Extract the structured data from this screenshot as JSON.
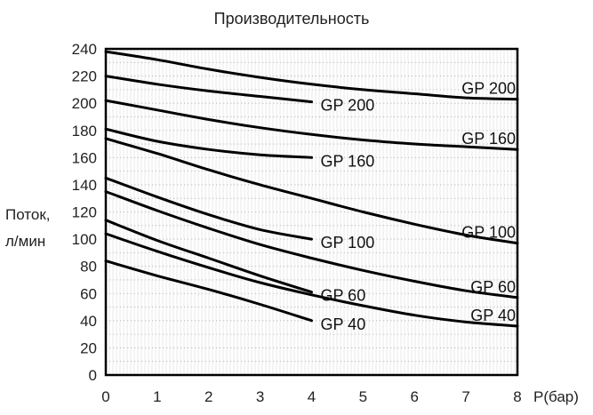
{
  "chart_data": {
    "type": "line",
    "title": "Производительность",
    "xlabel": "P(бар)",
    "ylabel_line1": "Поток,",
    "ylabel_line2": "л/мин",
    "xlim": [
      0,
      8
    ],
    "ylim": [
      0,
      240
    ],
    "xticks": [
      "0",
      "1",
      "2",
      "3",
      "4",
      "5",
      "6",
      "7",
      "8"
    ],
    "yticks": [
      "0",
      "20",
      "40",
      "60",
      "80",
      "100",
      "120",
      "140",
      "160",
      "180",
      "200",
      "220",
      "240"
    ],
    "grid": true,
    "series": [
      {
        "name": "GP 200",
        "x": [
          0,
          1,
          2,
          3,
          4,
          5,
          6,
          7,
          8
        ],
        "y": [
          238,
          232,
          225,
          219,
          214,
          210,
          207,
          204,
          203
        ]
      },
      {
        "name": "GP 200",
        "x": [
          0,
          1,
          2,
          3,
          4
        ],
        "y": [
          220,
          214,
          209,
          205,
          201
        ]
      },
      {
        "name": "GP 160",
        "x": [
          0,
          1,
          2,
          3,
          4,
          5,
          6,
          7,
          8
        ],
        "y": [
          202,
          195,
          188,
          182,
          177,
          173,
          170,
          168,
          166
        ]
      },
      {
        "name": "GP 160",
        "x": [
          0,
          1,
          2,
          3,
          4
        ],
        "y": [
          181,
          172,
          166,
          162,
          160
        ]
      },
      {
        "name": "GP 100",
        "x": [
          0,
          1,
          2,
          3,
          4,
          5,
          6,
          7,
          8
        ],
        "y": [
          174,
          163,
          151,
          140,
          130,
          120,
          111,
          103,
          97
        ]
      },
      {
        "name": "GP 100",
        "x": [
          0,
          1,
          2,
          3,
          4
        ],
        "y": [
          145,
          131,
          118,
          107,
          100
        ]
      },
      {
        "name": "GP 60",
        "x": [
          0,
          1,
          2,
          3,
          4,
          5,
          6,
          7,
          8
        ],
        "y": [
          135,
          121,
          108,
          96,
          86,
          77,
          69,
          62,
          57
        ]
      },
      {
        "name": "GP 60",
        "x": [
          0,
          1,
          2,
          3,
          4
        ],
        "y": [
          114,
          99,
          86,
          73,
          61
        ]
      },
      {
        "name": "GP 40",
        "x": [
          0,
          1,
          2,
          3,
          4,
          5,
          6,
          7,
          8
        ],
        "y": [
          104,
          91,
          79,
          68,
          59,
          51,
          44,
          39,
          36
        ]
      },
      {
        "name": "GP 40",
        "x": [
          0,
          1,
          2,
          3,
          4
        ],
        "y": [
          84,
          73,
          63,
          52,
          40
        ]
      }
    ]
  }
}
